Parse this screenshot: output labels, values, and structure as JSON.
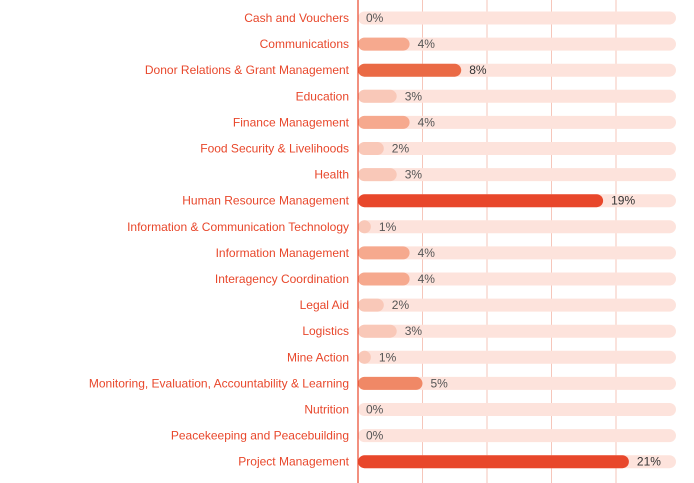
{
  "chart_data": {
    "type": "bar",
    "orientation": "horizontal",
    "categories": [
      "Cash and Vouchers",
      "Communications",
      "Donor Relations & Grant Management",
      "Education",
      "Finance Management",
      "Food Security & Livelihoods",
      "Health",
      "Human Resource Management",
      "Information & Communication Technology",
      "Information Management",
      "Interagency Coordination",
      "Legal Aid",
      "Logistics",
      "Mine Action",
      "Monitoring, Evaluation, Accountability & Learning",
      "Nutrition",
      "Peacekeeping and Peacebuilding",
      "Project Management"
    ],
    "values": [
      0,
      4,
      8,
      3,
      4,
      2,
      3,
      19,
      1,
      4,
      4,
      2,
      3,
      1,
      5,
      0,
      0,
      21
    ],
    "value_labels": [
      "0%",
      "4%",
      "8%",
      "3%",
      "4%",
      "2%",
      "3%",
      "19%",
      "1%",
      "4%",
      "4%",
      "2%",
      "3%",
      "1%",
      "5%",
      "0%",
      "0%",
      "21%"
    ],
    "xlim": [
      0,
      25
    ],
    "grid": true,
    "colors": {
      "track": "#fde3dc",
      "label": "#e8472b",
      "axis": "#e8472b",
      "grid": "#f6c6ba",
      "scale": [
        "#f9c8b8",
        "#f6a98e",
        "#f08866",
        "#ea6a45",
        "#e8472b"
      ]
    }
  }
}
